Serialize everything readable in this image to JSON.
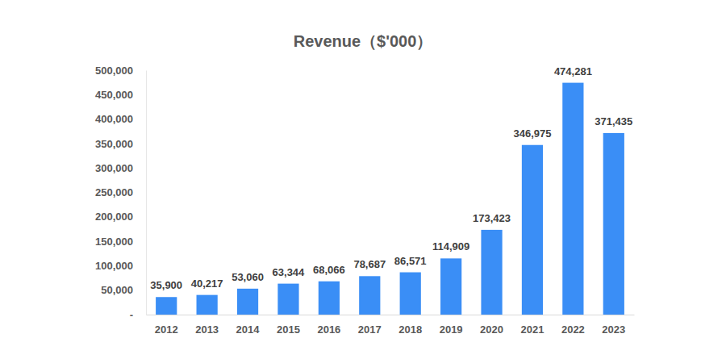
{
  "chart_data": {
    "type": "bar",
    "title": "Revenue（$'000）",
    "categories": [
      "2012",
      "2013",
      "2014",
      "2015",
      "2016",
      "2017",
      "2018",
      "2019",
      "2020",
      "2021",
      "2022",
      "2023"
    ],
    "values": [
      35900,
      40217,
      53060,
      63344,
      68066,
      78687,
      86571,
      114909,
      173423,
      346975,
      474281,
      371435
    ],
    "value_labels": [
      "35,900",
      "40,217",
      "53,060",
      "63,344",
      "68,066",
      "78,687",
      "86,571",
      "114,909",
      "173,423",
      "346,975",
      "474,281",
      "371,435"
    ],
    "color": "#3a8ef6",
    "ylim": [
      0,
      500000
    ],
    "yticks": [
      {
        "value": 0,
        "label": "-"
      },
      {
        "value": 50000,
        "label": "50,000"
      },
      {
        "value": 100000,
        "label": "100,000"
      },
      {
        "value": 150000,
        "label": "150,000"
      },
      {
        "value": 200000,
        "label": "200,000"
      },
      {
        "value": 250000,
        "label": "250,000"
      },
      {
        "value": 300000,
        "label": "300,000"
      },
      {
        "value": 350000,
        "label": "350,000"
      },
      {
        "value": 400000,
        "label": "400,000"
      },
      {
        "value": 450000,
        "label": "450,000"
      },
      {
        "value": 500000,
        "label": "500,000"
      }
    ],
    "grid": false,
    "data_labels": true
  }
}
